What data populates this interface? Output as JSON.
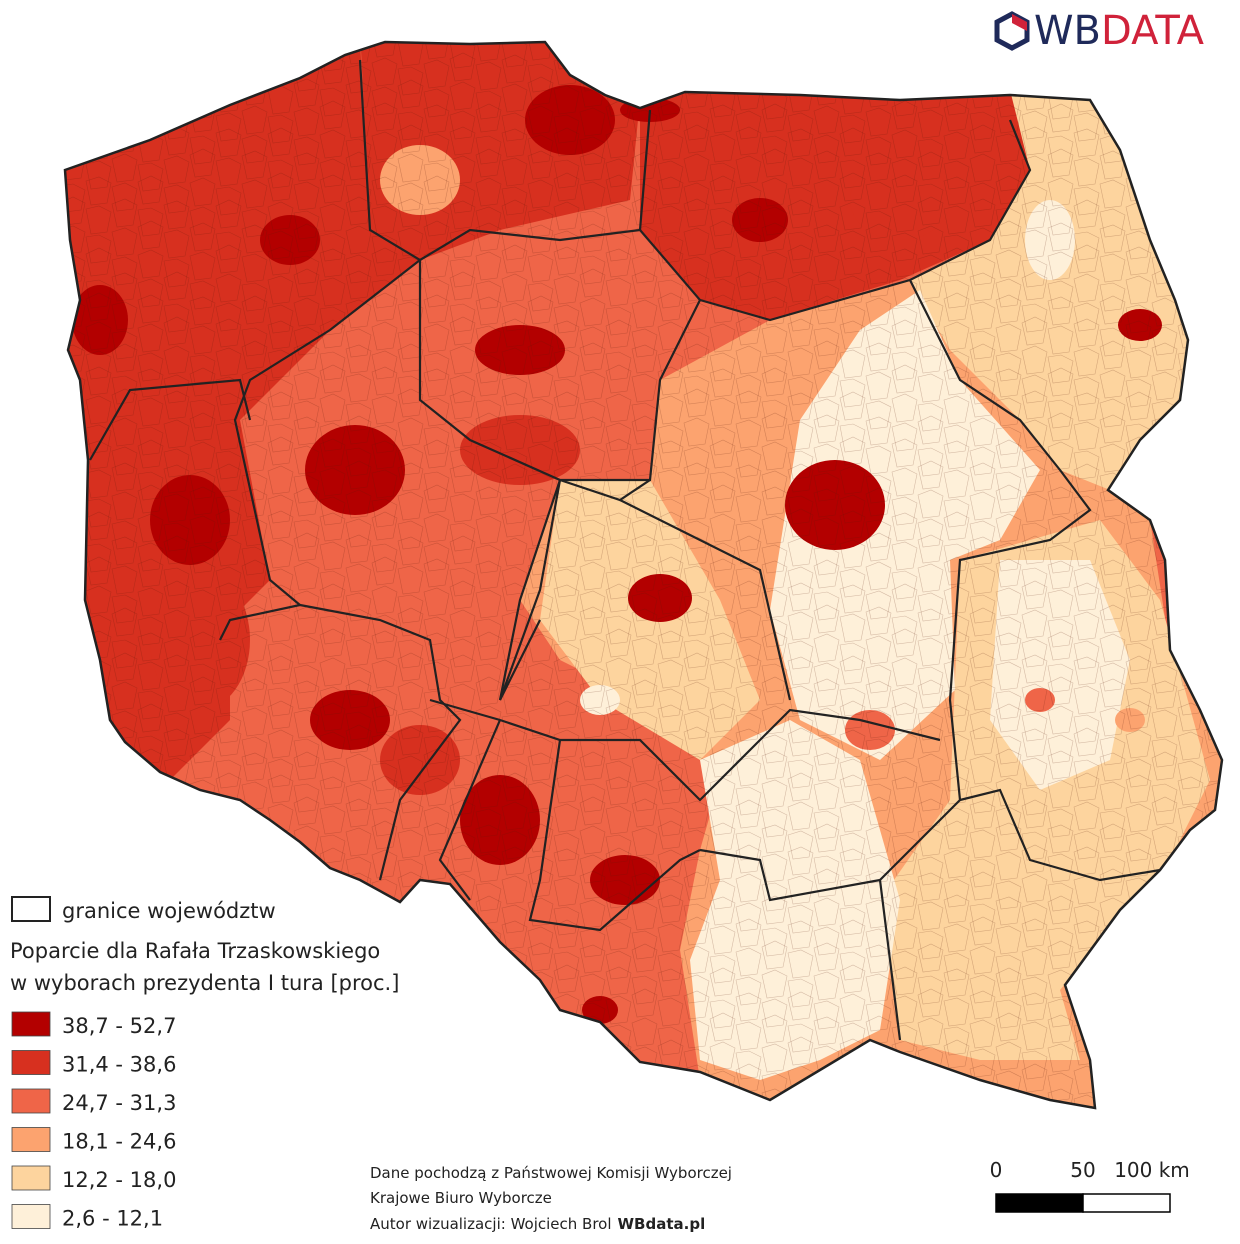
{
  "logo": [
    "WB",
    "DATA"
  ],
  "legend": {
    "boundary_label": "granice województw",
    "title_lines": [
      "Poparcie dla Rafała Trzaskowskiego",
      "w wyborach prezydenta I tura [proc.]"
    ],
    "classes": [
      {
        "label": "38,7 - 52,7",
        "color": "#b30000"
      },
      {
        "label": "31,4 - 38,6",
        "color": "#d7301f"
      },
      {
        "label": "24,7 - 31,3",
        "color": "#ef6548"
      },
      {
        "label": "18,1 - 24,6",
        "color": "#fca36f"
      },
      {
        "label": "12,2 - 18,0",
        "color": "#fdd49e"
      },
      {
        "label": "2,6 - 12,1",
        "color": "#fef0d9"
      }
    ]
  },
  "source": {
    "lines": [
      "Dane pochodzą z Państwowej Komisji Wyborczej",
      "Krajowe Biuro Wyborcze"
    ],
    "author": "Autor wizualizacji: Wojciech Brol",
    "site": "WBdata.pl"
  },
  "scale_bar": {
    "ticks": [
      0,
      50,
      {
        "value": 100,
        "label": "100 km"
      }
    ]
  }
}
